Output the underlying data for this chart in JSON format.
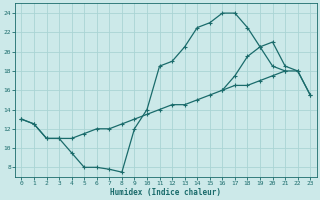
{
  "xlabel": "Humidex (Indice chaleur)",
  "bg_color": "#cce9e9",
  "grid_color": "#aad4d4",
  "line_color": "#1a6b6b",
  "xlim": [
    -0.5,
    23.5
  ],
  "ylim": [
    7,
    25
  ],
  "xticks": [
    0,
    1,
    2,
    3,
    4,
    5,
    6,
    7,
    8,
    9,
    10,
    11,
    12,
    13,
    14,
    15,
    16,
    17,
    18,
    19,
    20,
    21,
    22,
    23
  ],
  "yticks": [
    8,
    10,
    12,
    14,
    16,
    18,
    20,
    22,
    24
  ],
  "curve1_x": [
    0,
    1,
    2,
    3,
    4,
    5,
    6,
    7,
    8,
    9,
    10,
    11,
    12,
    13,
    14,
    15,
    16,
    17,
    18,
    19,
    20,
    21
  ],
  "curve1_y": [
    13.0,
    12.5,
    11.0,
    11.0,
    9.5,
    8.0,
    8.0,
    7.8,
    7.5,
    12.0,
    14.0,
    18.5,
    19.0,
    20.5,
    22.5,
    23.0,
    24.0,
    24.0,
    22.5,
    20.5,
    18.5,
    18.0
  ],
  "curve2_x": [
    0,
    1,
    2,
    3,
    4,
    5,
    6,
    7,
    8,
    9,
    10,
    11,
    12,
    13,
    14,
    15,
    16,
    17,
    18,
    19,
    20,
    21,
    22,
    23
  ],
  "curve2_y": [
    13.0,
    12.5,
    11.0,
    11.0,
    11.0,
    11.5,
    12.0,
    12.0,
    12.5,
    13.0,
    13.5,
    14.0,
    14.5,
    14.5,
    15.0,
    15.5,
    16.0,
    16.5,
    16.5,
    17.0,
    17.5,
    18.0,
    18.0,
    15.5
  ],
  "curve3_x": [
    16,
    17,
    18,
    19,
    20,
    21,
    22,
    23
  ],
  "curve3_y": [
    16.0,
    17.5,
    19.5,
    20.5,
    21.0,
    18.5,
    18.0,
    15.5
  ]
}
